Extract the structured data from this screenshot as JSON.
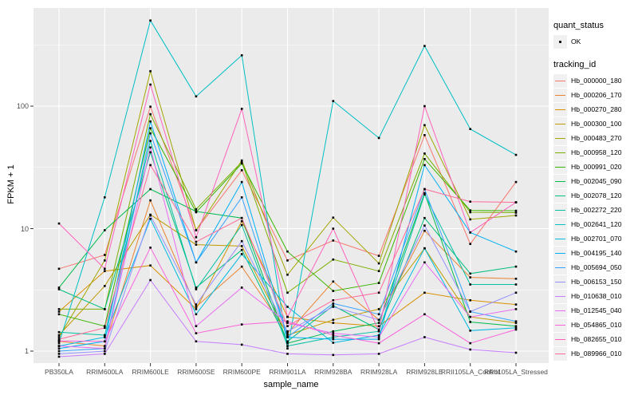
{
  "colors": {
    "panel_bg": "#EBEBEB",
    "grid": "#FFFFFF",
    "legend_key_bg": "#F0F0F0",
    "tick_text": "#4D4D4D",
    "tick_mark": "#333333",
    "point": "#000000"
  },
  "legend": {
    "quant_status": {
      "title": "quant_status",
      "items": [
        {
          "label": "OK",
          "marker": "black-point"
        }
      ]
    },
    "tracking_id": {
      "title": "tracking_id"
    }
  },
  "chart_data": {
    "type": "line",
    "title": "",
    "xlabel": "sample_name",
    "ylabel": "FPKM + 1",
    "y_scale": "log10",
    "ylim": [
      0.8,
      630
    ],
    "y_major_ticks": [
      1,
      10,
      100
    ],
    "y_tick_labels": [
      "1",
      "10",
      "100"
    ],
    "grid": "white major+minor horizontal, major vertical, on grey panel",
    "legend_position": "right",
    "marker": "small black point (quant_status OK)",
    "categories": [
      "PB350LA",
      "RRIM600LA",
      "RRIM600LE",
      "RRIM600SE",
      "RRIM600PE",
      "RRIM901LA",
      "RRIM928BA",
      "RRIM928LA",
      "RRIM928LE",
      "RRII105LA_Control",
      "RRII105LA_Stressed"
    ],
    "series": [
      {
        "name": "Hb_000000_180",
        "color": "#F8766D",
        "values": [
          4.7,
          6.1,
          99,
          9.7,
          30,
          5.5,
          8.0,
          6.0,
          58,
          7.5,
          24
        ]
      },
      {
        "name": "Hb_000206_170",
        "color": "#EA8331",
        "values": [
          1.2,
          1.1,
          17,
          2.3,
          4.9,
          1.4,
          3.7,
          1.8,
          9.6,
          4.0,
          3.9
        ]
      },
      {
        "name": "Hb_000270_280",
        "color": "#D89000",
        "values": [
          2.1,
          4.5,
          5.0,
          2.2,
          11.5,
          1.9,
          1.7,
          1.6,
          3.0,
          2.6,
          2.4
        ]
      },
      {
        "name": "Hb_000300_100",
        "color": "#C09B00",
        "values": [
          1.35,
          3.4,
          13,
          7.4,
          7.2,
          1.35,
          1.8,
          2.2,
          6.9,
          1.9,
          1.7
        ]
      },
      {
        "name": "Hb_000483_270",
        "color": "#A3A500",
        "values": [
          1.3,
          5.5,
          193,
          9.7,
          36,
          4.2,
          12.3,
          5.2,
          70,
          11.9,
          12.8
        ]
      },
      {
        "name": "Hb_000958_120",
        "color": "#7CAE00",
        "values": [
          2.2,
          2.2,
          86,
          14.4,
          35,
          3.0,
          5.6,
          4.5,
          41,
          13.6,
          13.5
        ]
      },
      {
        "name": "Hb_000991_020",
        "color": "#39B600",
        "values": [
          2.0,
          1.6,
          66,
          13.6,
          34,
          6.5,
          3.1,
          3.6,
          37,
          14.1,
          14.0
        ]
      },
      {
        "name": "Hb_002045_090",
        "color": "#00BB4E",
        "values": [
          3.3,
          9.7,
          21,
          13.8,
          12.2,
          1.16,
          1.45,
          1.7,
          19.5,
          1.73,
          1.6
        ]
      },
      {
        "name": "Hb_002078_120",
        "color": "#00BF7D",
        "values": [
          3.2,
          2.2,
          42,
          3.3,
          6.7,
          1.2,
          2.35,
          1.5,
          12.2,
          4.3,
          4.9
        ]
      },
      {
        "name": "Hb_002272_220",
        "color": "#00C1A3",
        "values": [
          1.43,
          1.35,
          52,
          3.2,
          10.7,
          1.1,
          1.3,
          1.45,
          19,
          3.5,
          3.5
        ]
      },
      {
        "name": "Hb_002641_120",
        "color": "#00BFC4",
        "values": [
          1.16,
          18,
          500,
          120,
          260,
          1.05,
          110,
          55,
          310,
          65,
          40
        ]
      },
      {
        "name": "Hb_002701_070",
        "color": "#00BAE0",
        "values": [
          1.1,
          1.3,
          12,
          2.0,
          6.2,
          2.3,
          1.17,
          1.35,
          6.9,
          1.47,
          1.55
        ]
      },
      {
        "name": "Hb_004195_140",
        "color": "#00B0F6",
        "values": [
          1.05,
          1.2,
          75,
          5.3,
          24,
          1.3,
          1.25,
          1.25,
          33,
          9.3,
          6.5
        ]
      },
      {
        "name": "Hb_005694_050",
        "color": "#35A2FF",
        "values": [
          1.0,
          1.05,
          60,
          5.3,
          18,
          1.3,
          2.45,
          2.0,
          21,
          2.1,
          1.75
        ]
      },
      {
        "name": "Hb_006153_150",
        "color": "#9590FF",
        "values": [
          0.95,
          1.0,
          12.8,
          2.4,
          7.9,
          1.45,
          2.3,
          1.8,
          10.6,
          2.1,
          3.0
        ]
      },
      {
        "name": "Hb_010638_010",
        "color": "#C77CFF",
        "values": [
          0.9,
          0.95,
          3.8,
          1.2,
          1.13,
          0.95,
          0.93,
          0.95,
          1.3,
          1.03,
          0.97
        ]
      },
      {
        "name": "Hb_012545_040",
        "color": "#E76BF3",
        "values": [
          1.1,
          1.05,
          46,
          1.6,
          3.3,
          1.7,
          1.4,
          1.3,
          5.3,
          1.9,
          2.2
        ]
      },
      {
        "name": "Hb_054865_010",
        "color": "#FA62DB",
        "values": [
          1.21,
          1.2,
          7.0,
          1.4,
          1.65,
          1.75,
          1.35,
          1.16,
          2.0,
          1.16,
          1.5
        ]
      },
      {
        "name": "Hb_082655_010",
        "color": "#FF62BC",
        "values": [
          11,
          4.7,
          150,
          8.5,
          95,
          1.9,
          10,
          1.45,
          100,
          9.3,
          16.4
        ]
      },
      {
        "name": "Hb_089966_010",
        "color": "#FF6A98",
        "values": [
          1.25,
          1.55,
          33,
          7.8,
          12.2,
          1.6,
          2.6,
          3.0,
          21,
          16.6,
          16.4
        ]
      }
    ]
  }
}
